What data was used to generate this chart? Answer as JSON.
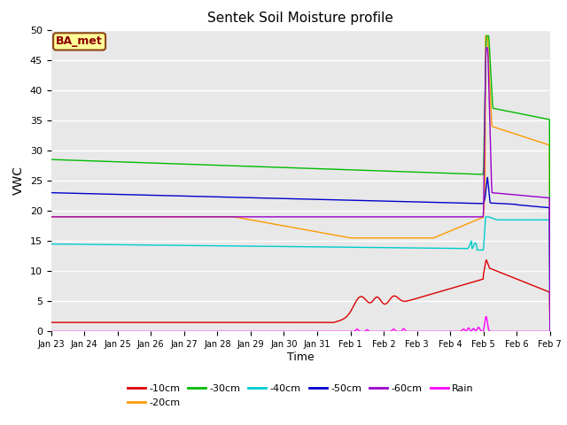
{
  "title": "Sentek Soil Moisture profile",
  "xlabel": "Time",
  "ylabel": "VWC",
  "ylim": [
    0,
    50
  ],
  "background_color": "#e8e8e8",
  "grid_color": "white",
  "legend_label": "BA_met",
  "legend_box_color": "#ffff99",
  "legend_box_edge": "#8B4513",
  "xtick_labels": [
    "Jan 23",
    "Jan 24",
    "Jan 25",
    "Jan 26",
    "Jan 27",
    "Jan 28",
    "Jan 29",
    "Jan 30",
    "Jan 31",
    "Feb 1",
    "Feb 2",
    "Feb 3",
    "Feb 4",
    "Feb 5",
    "Feb 6",
    "Feb 7"
  ],
  "series_labels": [
    "-10cm",
    "-20cm",
    "-30cm",
    "-40cm",
    "-50cm",
    "-60cm",
    "Rain"
  ],
  "series_colors": [
    "#dd0000",
    "#ff9900",
    "#00bb00",
    "#00cccc",
    "#0000cc",
    "#9900cc",
    "#ff00ff"
  ],
  "line_width": 1.0
}
